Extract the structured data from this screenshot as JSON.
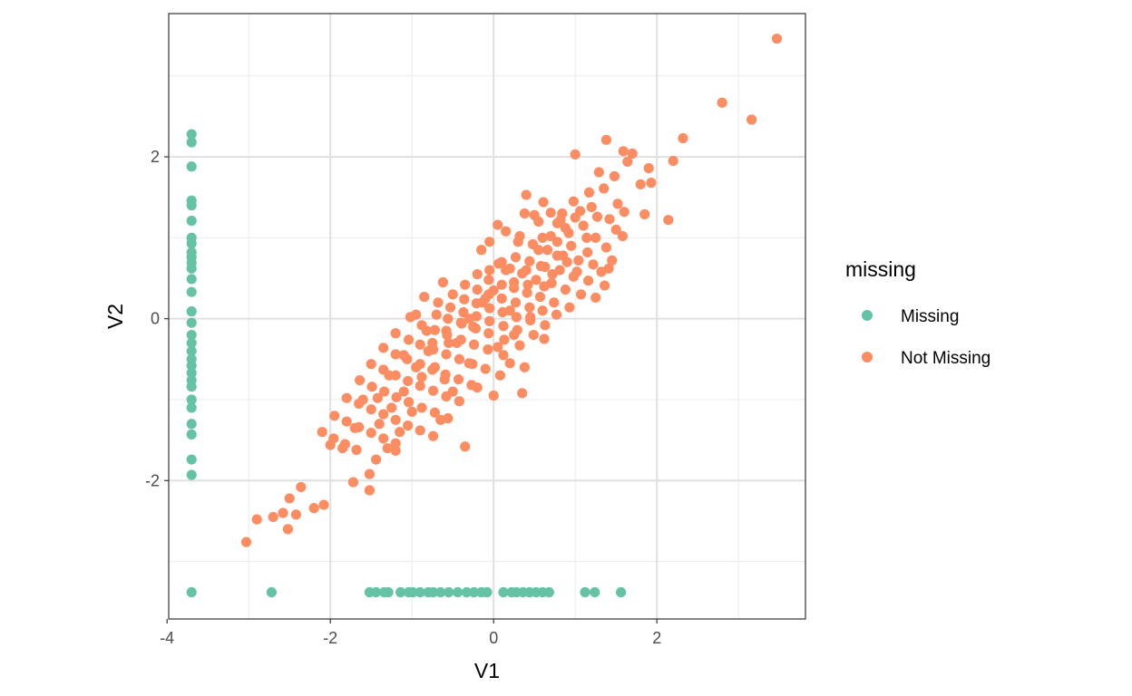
{
  "chart_data": {
    "type": "scatter",
    "title": "",
    "xlabel": "V1",
    "ylabel": "V2",
    "xlim": [
      -3.98,
      3.82
    ],
    "ylim": [
      -3.71,
      3.77
    ],
    "x_ticks": [
      -4,
      -2,
      0,
      2
    ],
    "x_tick_labels": [
      "-4",
      "-2",
      "0",
      "2"
    ],
    "y_ticks": [
      -2,
      0,
      2
    ],
    "y_tick_labels": [
      "-2",
      "0",
      "2"
    ],
    "grid": true,
    "legend": {
      "title": "missing",
      "position": "right"
    },
    "series": [
      {
        "name": "Missing",
        "color": "#66c2a5",
        "points": [
          [
            -3.7,
            2.28
          ],
          [
            -3.7,
            2.18
          ],
          [
            -3.7,
            1.88
          ],
          [
            -3.7,
            1.46
          ],
          [
            -3.7,
            1.4
          ],
          [
            -3.7,
            1.21
          ],
          [
            -3.7,
            1.0
          ],
          [
            -3.7,
            0.93
          ],
          [
            -3.7,
            0.82
          ],
          [
            -3.7,
            0.76
          ],
          [
            -3.7,
            0.69
          ],
          [
            -3.7,
            0.62
          ],
          [
            -3.7,
            0.49
          ],
          [
            -3.7,
            0.33
          ],
          [
            -3.7,
            0.09
          ],
          [
            -3.7,
            -0.05
          ],
          [
            -3.7,
            -0.2
          ],
          [
            -3.7,
            -0.3
          ],
          [
            -3.7,
            -0.4
          ],
          [
            -3.7,
            -0.5
          ],
          [
            -3.7,
            -0.58
          ],
          [
            -3.7,
            -0.67
          ],
          [
            -3.7,
            -0.76
          ],
          [
            -3.7,
            -0.84
          ],
          [
            -3.7,
            -1.0
          ],
          [
            -3.7,
            -1.1
          ],
          [
            -3.7,
            -1.3
          ],
          [
            -3.7,
            -1.43
          ],
          [
            -3.7,
            -1.74
          ],
          [
            -3.7,
            -1.93
          ],
          [
            -3.7,
            -3.38
          ],
          [
            -2.72,
            -3.38
          ],
          [
            -1.52,
            -3.38
          ],
          [
            -1.44,
            -3.38
          ],
          [
            -1.34,
            -3.38
          ],
          [
            -1.29,
            -3.38
          ],
          [
            -1.14,
            -3.38
          ],
          [
            -1.04,
            -3.38
          ],
          [
            -0.99,
            -3.38
          ],
          [
            -0.9,
            -3.38
          ],
          [
            -0.8,
            -3.38
          ],
          [
            -0.74,
            -3.38
          ],
          [
            -0.65,
            -3.38
          ],
          [
            -0.55,
            -3.38
          ],
          [
            -0.44,
            -3.38
          ],
          [
            -0.33,
            -3.38
          ],
          [
            -0.24,
            -3.38
          ],
          [
            -0.15,
            -3.38
          ],
          [
            -0.08,
            -3.38
          ],
          [
            0.12,
            -3.38
          ],
          [
            0.22,
            -3.38
          ],
          [
            0.28,
            -3.38
          ],
          [
            0.36,
            -3.38
          ],
          [
            0.44,
            -3.38
          ],
          [
            0.52,
            -3.38
          ],
          [
            0.6,
            -3.38
          ],
          [
            0.68,
            -3.38
          ],
          [
            1.12,
            -3.38
          ],
          [
            1.24,
            -3.38
          ],
          [
            1.56,
            -3.38
          ]
        ]
      },
      {
        "name": "Not Missing",
        "color": "#fc8d62",
        "points": [
          [
            3.47,
            3.46
          ],
          [
            2.8,
            2.67
          ],
          [
            3.16,
            2.46
          ],
          [
            2.32,
            2.23
          ],
          [
            2.2,
            1.95
          ],
          [
            2.14,
            1.22
          ],
          [
            1.9,
            1.86
          ],
          [
            1.7,
            2.04
          ],
          [
            1.38,
            2.21
          ],
          [
            1.59,
            2.07
          ],
          [
            1.0,
            2.03
          ],
          [
            1.29,
            1.81
          ],
          [
            1.8,
            1.66
          ],
          [
            1.93,
            1.68
          ],
          [
            1.85,
            1.29
          ],
          [
            1.48,
            1.76
          ],
          [
            1.64,
            1.94
          ],
          [
            0.4,
            1.53
          ],
          [
            0.61,
            1.44
          ],
          [
            0.98,
            1.45
          ],
          [
            1.17,
            1.56
          ],
          [
            1.35,
            1.61
          ],
          [
            1.52,
            1.42
          ],
          [
            1.6,
            1.32
          ],
          [
            0.38,
            1.3
          ],
          [
            0.7,
            1.31
          ],
          [
            0.84,
            1.3
          ],
          [
            1.06,
            1.33
          ],
          [
            1.27,
            1.26
          ],
          [
            1.42,
            1.23
          ],
          [
            1.5,
            1.1
          ],
          [
            1.58,
            1.02
          ],
          [
            0.05,
            1.16
          ],
          [
            0.32,
            1.02
          ],
          [
            0.55,
            1.2
          ],
          [
            0.78,
            1.18
          ],
          [
            0.92,
            1.06
          ],
          [
            1.14,
            1.0
          ],
          [
            1.38,
            0.88
          ],
          [
            0.48,
            0.92
          ],
          [
            0.66,
            0.85
          ],
          [
            0.85,
            0.78
          ],
          [
            1.04,
            0.72
          ],
          [
            1.22,
            0.67
          ],
          [
            1.41,
            0.62
          ],
          [
            0.27,
            0.76
          ],
          [
            0.44,
            0.71
          ],
          [
            0.63,
            0.64
          ],
          [
            0.81,
            0.6
          ],
          [
            0.98,
            0.52
          ],
          [
            1.16,
            0.47
          ],
          [
            1.36,
            0.41
          ],
          [
            0.06,
            0.68
          ],
          [
            0.2,
            0.62
          ],
          [
            0.35,
            0.56
          ],
          [
            0.52,
            0.48
          ],
          [
            0.71,
            0.44
          ],
          [
            0.88,
            0.36
          ],
          [
            1.07,
            0.3
          ],
          [
            1.25,
            0.26
          ],
          [
            -0.2,
            0.55
          ],
          [
            -0.06,
            0.48
          ],
          [
            0.1,
            0.42
          ],
          [
            0.25,
            0.38
          ],
          [
            0.41,
            0.32
          ],
          [
            0.57,
            0.27
          ],
          [
            0.74,
            0.2
          ],
          [
            0.93,
            0.14
          ],
          [
            -0.35,
            0.42
          ],
          [
            -0.2,
            0.36
          ],
          [
            -0.06,
            0.3
          ],
          [
            0.1,
            0.25
          ],
          [
            0.27,
            0.2
          ],
          [
            0.44,
            0.14
          ],
          [
            0.6,
            0.1
          ],
          [
            0.77,
            0.05
          ],
          [
            -0.5,
            0.3
          ],
          [
            -0.36,
            0.24
          ],
          [
            -0.21,
            0.19
          ],
          [
            -0.05,
            0.13
          ],
          [
            0.11,
            0.08
          ],
          [
            0.28,
            0.02
          ],
          [
            0.45,
            -0.02
          ],
          [
            0.63,
            -0.08
          ],
          [
            -0.68,
            0.2
          ],
          [
            -0.53,
            0.14
          ],
          [
            -0.37,
            0.08
          ],
          [
            -0.21,
            0.03
          ],
          [
            -0.05,
            -0.03
          ],
          [
            0.12,
            -0.09
          ],
          [
            0.29,
            -0.14
          ],
          [
            0.49,
            -0.2
          ],
          [
            -0.85,
            0.27
          ],
          [
            -0.7,
            0.05
          ],
          [
            -0.56,
            0.0
          ],
          [
            -0.39,
            -0.06
          ],
          [
            -0.22,
            -0.12
          ],
          [
            -0.06,
            -0.18
          ],
          [
            0.13,
            -0.26
          ],
          [
            0.32,
            -0.33
          ],
          [
            -1.02,
            0.02
          ],
          [
            -0.88,
            -0.08
          ],
          [
            -0.72,
            -0.14
          ],
          [
            -0.57,
            -0.2
          ],
          [
            -0.4,
            -0.26
          ],
          [
            -0.24,
            -0.32
          ],
          [
            -0.07,
            -0.38
          ],
          [
            0.12,
            -0.45
          ],
          [
            -1.2,
            -0.18
          ],
          [
            -1.04,
            -0.26
          ],
          [
            -0.9,
            -0.32
          ],
          [
            -0.74,
            -0.38
          ],
          [
            -0.58,
            -0.44
          ],
          [
            -0.42,
            -0.5
          ],
          [
            -0.26,
            -0.56
          ],
          [
            -0.1,
            -0.62
          ],
          [
            0.08,
            -0.7
          ],
          [
            -1.35,
            -0.36
          ],
          [
            -1.2,
            -0.44
          ],
          [
            -1.06,
            -0.5
          ],
          [
            -0.9,
            -0.56
          ],
          [
            -0.75,
            -0.63
          ],
          [
            -0.59,
            -0.69
          ],
          [
            -0.43,
            -0.75
          ],
          [
            -0.27,
            -0.82
          ],
          [
            -1.5,
            -0.56
          ],
          [
            -1.35,
            -0.63
          ],
          [
            -1.2,
            -0.7
          ],
          [
            -1.05,
            -0.77
          ],
          [
            -0.9,
            -0.83
          ],
          [
            -0.74,
            -0.89
          ],
          [
            -0.58,
            -0.96
          ],
          [
            -0.42,
            -1.02
          ],
          [
            -1.64,
            -0.76
          ],
          [
            -1.49,
            -0.84
          ],
          [
            -1.34,
            -0.9
          ],
          [
            -1.19,
            -0.97
          ],
          [
            -1.04,
            -1.03
          ],
          [
            -0.88,
            -1.1
          ],
          [
            -0.72,
            -1.16
          ],
          [
            -0.56,
            -1.23
          ],
          [
            -1.8,
            -0.98
          ],
          [
            -1.65,
            -1.05
          ],
          [
            -1.5,
            -1.12
          ],
          [
            -1.35,
            -1.18
          ],
          [
            -1.2,
            -1.25
          ],
          [
            -1.05,
            -1.32
          ],
          [
            -0.9,
            -1.38
          ],
          [
            -0.74,
            -1.45
          ],
          [
            -1.95,
            -1.2
          ],
          [
            -1.8,
            -1.27
          ],
          [
            -1.65,
            -1.34
          ],
          [
            -1.5,
            -1.41
          ],
          [
            -1.35,
            -1.48
          ],
          [
            -1.2,
            -1.54
          ],
          [
            -2.1,
            -1.4
          ],
          [
            -1.96,
            -1.48
          ],
          [
            -1.82,
            -1.55
          ],
          [
            -1.68,
            -1.62
          ],
          [
            -2.0,
            -1.56
          ],
          [
            -1.44,
            -1.74
          ],
          [
            -1.52,
            -1.92
          ],
          [
            -1.72,
            -2.02
          ],
          [
            -1.52,
            -2.12
          ],
          [
            -0.35,
            -1.58
          ],
          [
            -1.2,
            -1.63
          ],
          [
            -2.36,
            -2.08
          ],
          [
            -2.08,
            -2.3
          ],
          [
            -2.2,
            -2.34
          ],
          [
            -2.5,
            -2.22
          ],
          [
            -2.42,
            -2.42
          ],
          [
            -2.58,
            -2.4
          ],
          [
            -2.7,
            -2.45
          ],
          [
            -2.9,
            -2.48
          ],
          [
            -2.52,
            -2.6
          ],
          [
            -3.03,
            -2.76
          ],
          [
            0.0,
            -0.95
          ],
          [
            0.35,
            -0.92
          ],
          [
            0.38,
            -0.6
          ],
          [
            0.2,
            -0.55
          ],
          [
            0.62,
            -0.25
          ],
          [
            0.72,
            0.55
          ],
          [
            0.58,
            0.65
          ],
          [
            0.5,
            1.28
          ],
          [
            0.78,
            0.95
          ],
          [
            0.88,
            1.12
          ],
          [
            -0.15,
            0.85
          ],
          [
            -0.05,
            0.6
          ],
          [
            0.15,
            0.6
          ],
          [
            0.0,
            0.35
          ],
          [
            -0.3,
            0.0
          ],
          [
            -0.45,
            -0.3
          ],
          [
            -0.62,
            0.45
          ],
          [
            -0.8,
            -0.4
          ],
          [
            -0.95,
            -0.6
          ],
          [
            -1.1,
            -0.9
          ],
          [
            -1.25,
            -1.1
          ],
          [
            -1.4,
            -1.3
          ],
          [
            -0.6,
            -0.75
          ],
          [
            -0.2,
            -0.85
          ],
          [
            -0.4,
            -0.05
          ],
          [
            -0.14,
            0.2
          ],
          [
            0.2,
            0.1
          ],
          [
            0.42,
            0.42
          ],
          [
            0.62,
            0.4
          ],
          [
            0.78,
            0.78
          ],
          [
            0.95,
            0.9
          ],
          [
            1.1,
            1.15
          ],
          [
            1.25,
            1.0
          ],
          [
            1.32,
            0.58
          ],
          [
            1.45,
            0.72
          ],
          [
            1.15,
            0.82
          ],
          [
            1.02,
            0.58
          ],
          [
            0.9,
            0.7
          ],
          [
            0.7,
            1.02
          ],
          [
            0.55,
            0.85
          ],
          [
            0.4,
            0.6
          ],
          [
            0.25,
            0.45
          ],
          [
            0.1,
            0.7
          ],
          [
            -0.1,
            0.25
          ],
          [
            -0.25,
            -0.1
          ],
          [
            -0.55,
            -0.3
          ],
          [
            -0.72,
            -0.6
          ],
          [
            -0.88,
            -0.72
          ],
          [
            -1.0,
            -1.15
          ],
          [
            -1.15,
            -1.4
          ],
          [
            -1.3,
            -1.6
          ],
          [
            -0.65,
            -1.25
          ],
          [
            -0.5,
            -0.9
          ],
          [
            -0.3,
            -0.55
          ],
          [
            0.05,
            -0.35
          ],
          [
            0.25,
            -0.2
          ],
          [
            0.45,
            0.02
          ],
          [
            -0.05,
            0.95
          ],
          [
            0.15,
            1.08
          ],
          [
            0.3,
            0.95
          ],
          [
            0.6,
            1.0
          ],
          [
            0.82,
            1.22
          ],
          [
            1.0,
            1.25
          ],
          [
            1.2,
            1.38
          ],
          [
            -0.95,
            0.05
          ],
          [
            -0.82,
            -0.15
          ],
          [
            -1.1,
            -0.45
          ],
          [
            -1.28,
            -0.7
          ],
          [
            -1.42,
            -0.98
          ],
          [
            -1.6,
            -1.0
          ],
          [
            -1.7,
            -1.35
          ],
          [
            -1.85,
            -1.6
          ],
          [
            -0.58,
            -0.15
          ],
          [
            -0.75,
            -0.3
          ]
        ]
      }
    ]
  }
}
